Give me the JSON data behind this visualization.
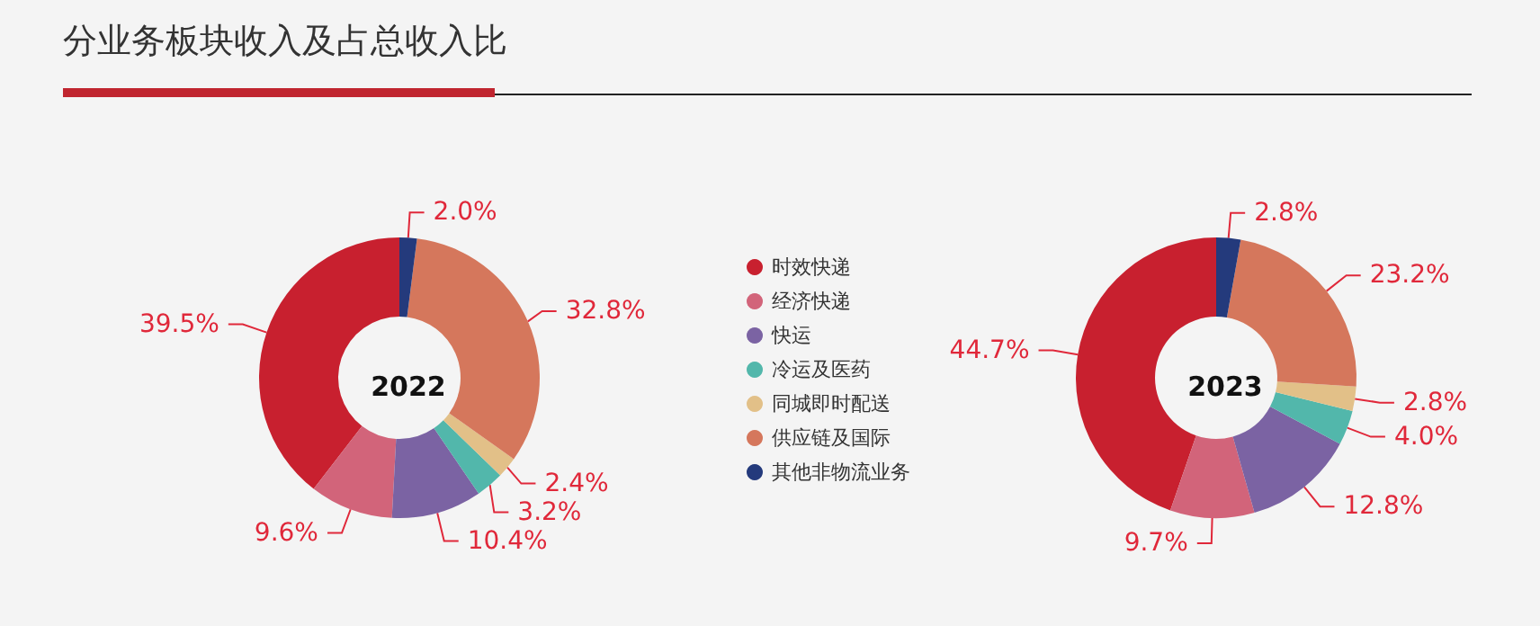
{
  "chart_data": {
    "type": "donut",
    "title": "分业务板块收入及占总收入比",
    "legend": "right",
    "categories": [
      "时效快递",
      "经济快递",
      "快运",
      "冷运及医药",
      "同城即时配送",
      "供应链及国际",
      "其他非物流业务"
    ],
    "colors": [
      "#c8202f",
      "#d2647a",
      "#7b63a3",
      "#52b7ab",
      "#e2c088",
      "#d5775c",
      "#243a7c"
    ],
    "series": [
      {
        "name": "2022",
        "values": [
          39.5,
          9.6,
          10.4,
          3.2,
          2.4,
          32.8,
          2.0
        ],
        "value_labels": [
          "39.5%",
          "9.6%",
          "10.4%",
          "3.2%",
          "2.4%",
          "32.8%",
          "2.0%"
        ]
      },
      {
        "name": "2023",
        "values": [
          44.7,
          9.7,
          12.8,
          4.0,
          2.8,
          23.2,
          2.8
        ],
        "value_labels": [
          "44.7%",
          "9.7%",
          "12.8%",
          "4.0%",
          "2.8%",
          "23.2%",
          "2.8%"
        ]
      }
    ]
  }
}
